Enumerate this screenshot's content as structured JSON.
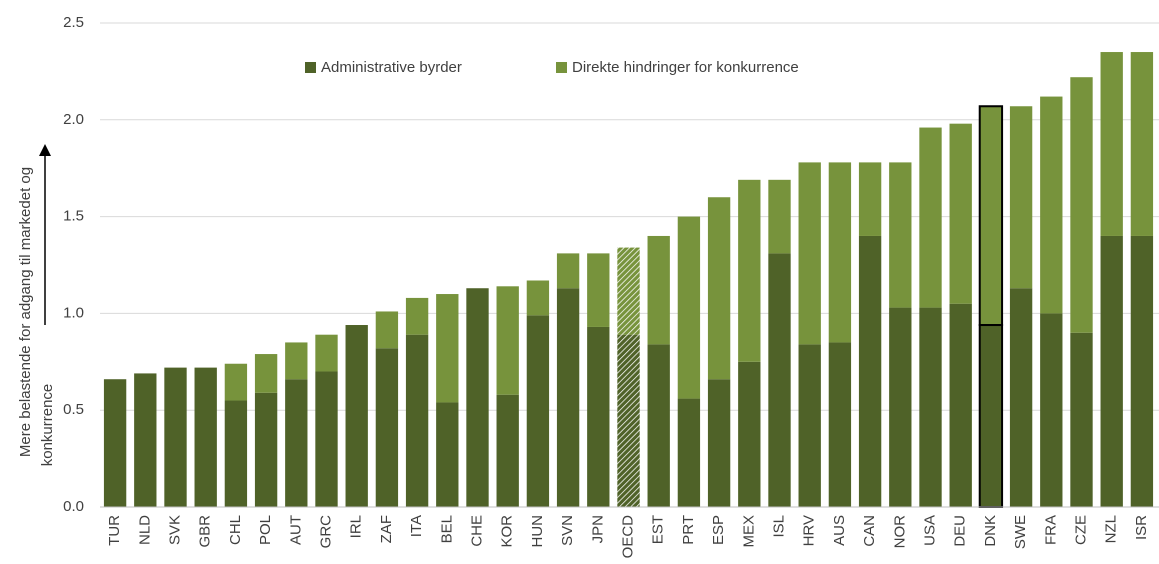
{
  "chart_data": {
    "type": "stacked_bar",
    "y_label": [
      "Mere belastende for adgang til markedet og",
      "konkurrence"
    ],
    "categories": [
      "TUR",
      "NLD",
      "SVK",
      "GBR",
      "CHL",
      "POL",
      "AUT",
      "GRC",
      "IRL",
      "ZAF",
      "ITA",
      "BEL",
      "CHE",
      "KOR",
      "HUN",
      "SVN",
      "JPN",
      "OECD",
      "EST",
      "PRT",
      "ESP",
      "MEX",
      "ISL",
      "HRV",
      "AUS",
      "CAN",
      "NOR",
      "USA",
      "DEU",
      "DNK",
      "SWE",
      "FRA",
      "CZE",
      "NZL",
      "ISR"
    ],
    "series": [
      {
        "name": "Administrative byrder",
        "color": "#4f6228",
        "values": [
          0.66,
          0.69,
          0.72,
          0.72,
          0.55,
          0.59,
          0.66,
          0.7,
          0.94,
          0.82,
          0.89,
          0.54,
          1.13,
          0.58,
          0.99,
          1.13,
          0.93,
          0.89,
          0.84,
          0.56,
          0.66,
          0.75,
          1.31,
          0.84,
          0.85,
          1.4,
          1.03,
          1.03,
          1.05,
          0.94,
          1.13,
          1.0,
          0.9,
          1.4,
          1.4
        ]
      },
      {
        "name": "Direkte hindringer for konkurrence",
        "color": "#77933c",
        "values": [
          0,
          0,
          0,
          0,
          0.19,
          0.2,
          0.19,
          0.19,
          0,
          0.19,
          0.19,
          0.56,
          0,
          0.56,
          0.18,
          0.18,
          0.38,
          0.45,
          0.56,
          0.94,
          0.94,
          0.94,
          0.38,
          0.94,
          0.93,
          0.38,
          0.75,
          0.93,
          0.93,
          1.13,
          0.94,
          1.12,
          1.32,
          0.95,
          0.95
        ]
      }
    ],
    "hatched": "OECD",
    "highlight": "DNK",
    "ylim": [
      0,
      2.5
    ],
    "yticks": [
      {
        "value": 0,
        "label": "0.0"
      },
      {
        "value": 0.5,
        "label": "0.5"
      },
      {
        "value": 1,
        "label": "1.0"
      },
      {
        "value": 1.5,
        "label": "1.5"
      },
      {
        "value": 2,
        "label": "2.0"
      },
      {
        "value": 2.5,
        "label": "2.5"
      }
    ],
    "grid": true,
    "legend": "top"
  }
}
